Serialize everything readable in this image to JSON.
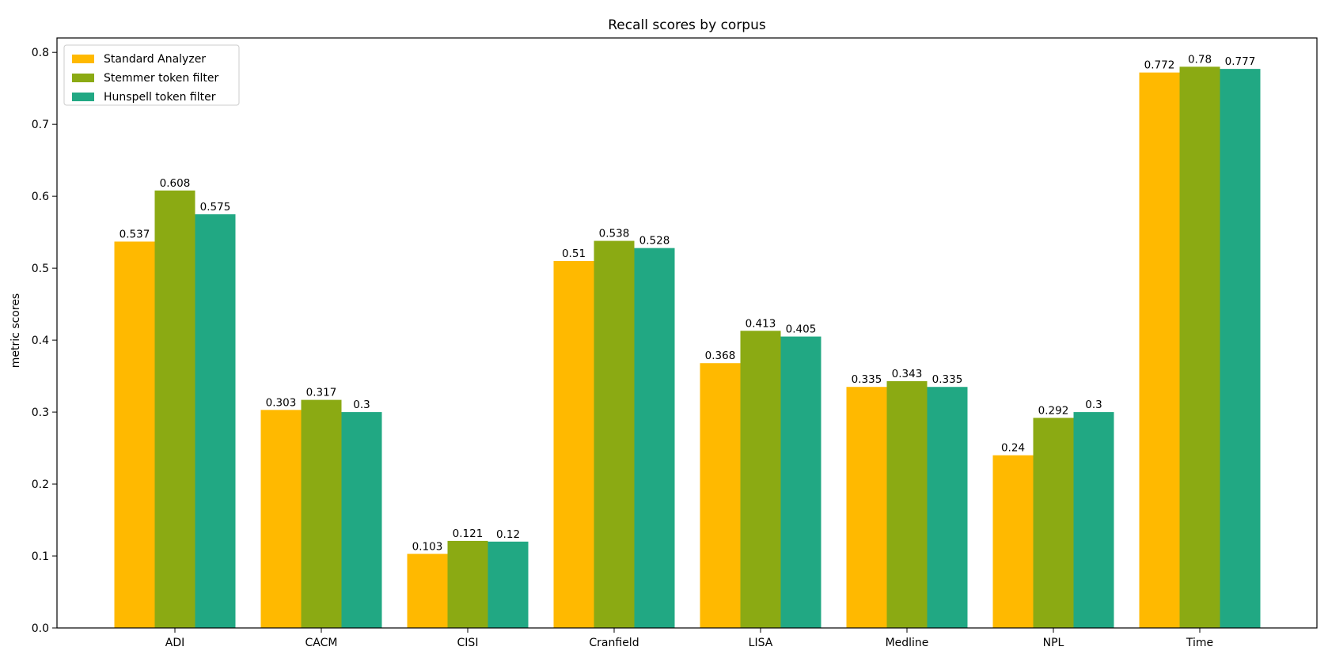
{
  "chart_data": {
    "type": "bar",
    "title": "Recall scores by corpus",
    "xlabel": "",
    "ylabel": "metric scores",
    "ylim": [
      0,
      0.82
    ],
    "yticks": [
      0.0,
      0.1,
      0.2,
      0.3,
      0.4,
      0.5,
      0.6,
      0.7,
      0.8
    ],
    "ytick_labels": [
      "0.0",
      "0.1",
      "0.2",
      "0.3",
      "0.4",
      "0.5",
      "0.6",
      "0.7",
      "0.8"
    ],
    "categories": [
      "ADI",
      "CACM",
      "CISI",
      "Cranfield",
      "LISA",
      "Medline",
      "NPL",
      "Time"
    ],
    "grid": false,
    "legend_position": "top-left",
    "series": [
      {
        "name": "Standard Analyzer",
        "color": "#FFB900",
        "values": [
          0.537,
          0.303,
          0.103,
          0.51,
          0.368,
          0.335,
          0.24,
          0.772
        ],
        "labels": [
          "0.537",
          "0.303",
          "0.103",
          "0.51",
          "0.368",
          "0.335",
          "0.24",
          "0.772"
        ]
      },
      {
        "name": "Stemmer token filter",
        "color": "#8BAA13",
        "values": [
          0.608,
          0.317,
          0.121,
          0.538,
          0.413,
          0.343,
          0.292,
          0.78
        ],
        "labels": [
          "0.608",
          "0.317",
          "0.121",
          "0.538",
          "0.413",
          "0.343",
          "0.292",
          "0.78"
        ]
      },
      {
        "name": "Hunspell token filter",
        "color": "#21A883",
        "values": [
          0.575,
          0.3,
          0.12,
          0.528,
          0.405,
          0.335,
          0.3,
          0.777
        ],
        "labels": [
          "0.575",
          "0.3",
          "0.12",
          "0.528",
          "0.405",
          "0.335",
          "0.3",
          "0.777"
        ]
      }
    ]
  }
}
